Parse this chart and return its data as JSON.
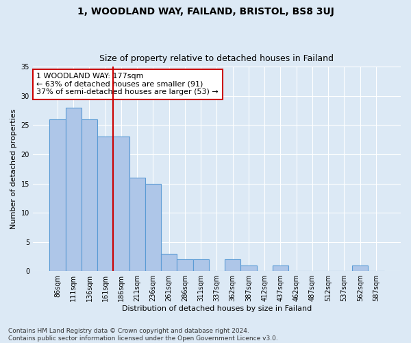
{
  "title": "1, WOODLAND WAY, FAILAND, BRISTOL, BS8 3UJ",
  "subtitle": "Size of property relative to detached houses in Failand",
  "xlabel": "Distribution of detached houses by size in Failand",
  "ylabel": "Number of detached properties",
  "categories": [
    "86sqm",
    "111sqm",
    "136sqm",
    "161sqm",
    "186sqm",
    "211sqm",
    "236sqm",
    "261sqm",
    "286sqm",
    "311sqm",
    "337sqm",
    "362sqm",
    "387sqm",
    "412sqm",
    "437sqm",
    "462sqm",
    "487sqm",
    "512sqm",
    "537sqm",
    "562sqm",
    "587sqm"
  ],
  "values": [
    26,
    28,
    26,
    23,
    23,
    16,
    15,
    3,
    2,
    2,
    0,
    2,
    1,
    0,
    1,
    0,
    0,
    0,
    0,
    1,
    0
  ],
  "bar_color": "#aec6e8",
  "bar_edge_color": "#5b9bd5",
  "bar_linewidth": 0.8,
  "vline_x_index": 4,
  "vline_color": "#cc0000",
  "annotation_text": "1 WOODLAND WAY: 177sqm\n← 63% of detached houses are smaller (91)\n37% of semi-detached houses are larger (53) →",
  "annotation_box_color": "#ffffff",
  "annotation_box_edge_color": "#cc0000",
  "ylim": [
    0,
    35
  ],
  "yticks": [
    0,
    5,
    10,
    15,
    20,
    25,
    30,
    35
  ],
  "background_color": "#dce9f5",
  "plot_bg_color": "#dce9f5",
  "grid_color": "#ffffff",
  "footer_text": "Contains HM Land Registry data © Crown copyright and database right 2024.\nContains public sector information licensed under the Open Government Licence v3.0.",
  "title_fontsize": 10,
  "subtitle_fontsize": 9,
  "axis_label_fontsize": 8,
  "tick_fontsize": 7,
  "annotation_fontsize": 8,
  "footer_fontsize": 6.5
}
